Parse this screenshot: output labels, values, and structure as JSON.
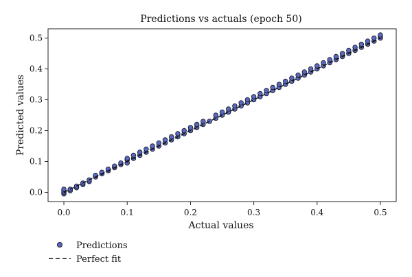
{
  "chart_data": {
    "type": "scatter",
    "title": "Predictions vs actuals (epoch 50)",
    "xlabel": "Actual values",
    "ylabel": "Predicted values",
    "xlim": [
      -0.025,
      0.525
    ],
    "ylim": [
      -0.03,
      0.53
    ],
    "xticks": [
      0.0,
      0.1,
      0.2,
      0.3,
      0.4,
      0.5
    ],
    "yticks": [
      0.0,
      0.1,
      0.2,
      0.3,
      0.4,
      0.5
    ],
    "xtick_labels": [
      "0.0",
      "0.1",
      "0.2",
      "0.3",
      "0.4",
      "0.5"
    ],
    "ytick_labels": [
      "0.0",
      "0.1",
      "0.2",
      "0.3",
      "0.4",
      "0.5"
    ],
    "grid": false,
    "legend_position": "bottom-left, below plot",
    "colors": {
      "points": "#5a6bbf",
      "point_edge": "#1a1a2e",
      "line": "#111111"
    },
    "series": [
      {
        "name": "Predictions",
        "kind": "scatter",
        "points": [
          [
            0.0,
            -0.005
          ],
          [
            0.0,
            0.0
          ],
          [
            0.0,
            0.005
          ],
          [
            0.0,
            0.01
          ],
          [
            0.01,
            0.005
          ],
          [
            0.01,
            0.01
          ],
          [
            0.02,
            0.015
          ],
          [
            0.02,
            0.02
          ],
          [
            0.03,
            0.025
          ],
          [
            0.03,
            0.03
          ],
          [
            0.04,
            0.035
          ],
          [
            0.04,
            0.04
          ],
          [
            0.05,
            0.05
          ],
          [
            0.05,
            0.055
          ],
          [
            0.06,
            0.06
          ],
          [
            0.06,
            0.065
          ],
          [
            0.07,
            0.07
          ],
          [
            0.07,
            0.075
          ],
          [
            0.08,
            0.08
          ],
          [
            0.08,
            0.085
          ],
          [
            0.09,
            0.09
          ],
          [
            0.09,
            0.095
          ],
          [
            0.1,
            0.095
          ],
          [
            0.1,
            0.105
          ],
          [
            0.1,
            0.11
          ],
          [
            0.11,
            0.11
          ],
          [
            0.11,
            0.12
          ],
          [
            0.12,
            0.12
          ],
          [
            0.12,
            0.13
          ],
          [
            0.13,
            0.13
          ],
          [
            0.13,
            0.14
          ],
          [
            0.14,
            0.14
          ],
          [
            0.14,
            0.15
          ],
          [
            0.15,
            0.15
          ],
          [
            0.15,
            0.16
          ],
          [
            0.16,
            0.16
          ],
          [
            0.16,
            0.17
          ],
          [
            0.17,
            0.17
          ],
          [
            0.17,
            0.18
          ],
          [
            0.18,
            0.18
          ],
          [
            0.18,
            0.19
          ],
          [
            0.19,
            0.19
          ],
          [
            0.19,
            0.2
          ],
          [
            0.2,
            0.2
          ],
          [
            0.2,
            0.21
          ],
          [
            0.21,
            0.21
          ],
          [
            0.21,
            0.22
          ],
          [
            0.22,
            0.22
          ],
          [
            0.22,
            0.23
          ],
          [
            0.23,
            0.23
          ],
          [
            0.24,
            0.24
          ],
          [
            0.24,
            0.25
          ],
          [
            0.25,
            0.25
          ],
          [
            0.25,
            0.26
          ],
          [
            0.26,
            0.26
          ],
          [
            0.26,
            0.27
          ],
          [
            0.27,
            0.27
          ],
          [
            0.27,
            0.28
          ],
          [
            0.28,
            0.28
          ],
          [
            0.28,
            0.29
          ],
          [
            0.29,
            0.29
          ],
          [
            0.29,
            0.3
          ],
          [
            0.3,
            0.3
          ],
          [
            0.3,
            0.31
          ],
          [
            0.31,
            0.31
          ],
          [
            0.31,
            0.32
          ],
          [
            0.32,
            0.32
          ],
          [
            0.32,
            0.33
          ],
          [
            0.33,
            0.33
          ],
          [
            0.33,
            0.34
          ],
          [
            0.34,
            0.34
          ],
          [
            0.34,
            0.35
          ],
          [
            0.35,
            0.35
          ],
          [
            0.35,
            0.36
          ],
          [
            0.36,
            0.36
          ],
          [
            0.36,
            0.37
          ],
          [
            0.37,
            0.37
          ],
          [
            0.37,
            0.38
          ],
          [
            0.38,
            0.38
          ],
          [
            0.38,
            0.39
          ],
          [
            0.39,
            0.39
          ],
          [
            0.39,
            0.4
          ],
          [
            0.4,
            0.4
          ],
          [
            0.4,
            0.41
          ],
          [
            0.41,
            0.41
          ],
          [
            0.41,
            0.42
          ],
          [
            0.42,
            0.42
          ],
          [
            0.42,
            0.43
          ],
          [
            0.43,
            0.43
          ],
          [
            0.43,
            0.44
          ],
          [
            0.44,
            0.44
          ],
          [
            0.44,
            0.45
          ],
          [
            0.45,
            0.45
          ],
          [
            0.45,
            0.46
          ],
          [
            0.46,
            0.46
          ],
          [
            0.46,
            0.47
          ],
          [
            0.47,
            0.47
          ],
          [
            0.47,
            0.48
          ],
          [
            0.48,
            0.48
          ],
          [
            0.48,
            0.49
          ],
          [
            0.49,
            0.49
          ],
          [
            0.49,
            0.5
          ],
          [
            0.5,
            0.5
          ],
          [
            0.5,
            0.505
          ],
          [
            0.5,
            0.51
          ]
        ]
      },
      {
        "name": "Perfect fit",
        "kind": "line",
        "style": "dashed",
        "points": [
          [
            0.0,
            0.0
          ],
          [
            0.5,
            0.5
          ]
        ]
      }
    ]
  }
}
